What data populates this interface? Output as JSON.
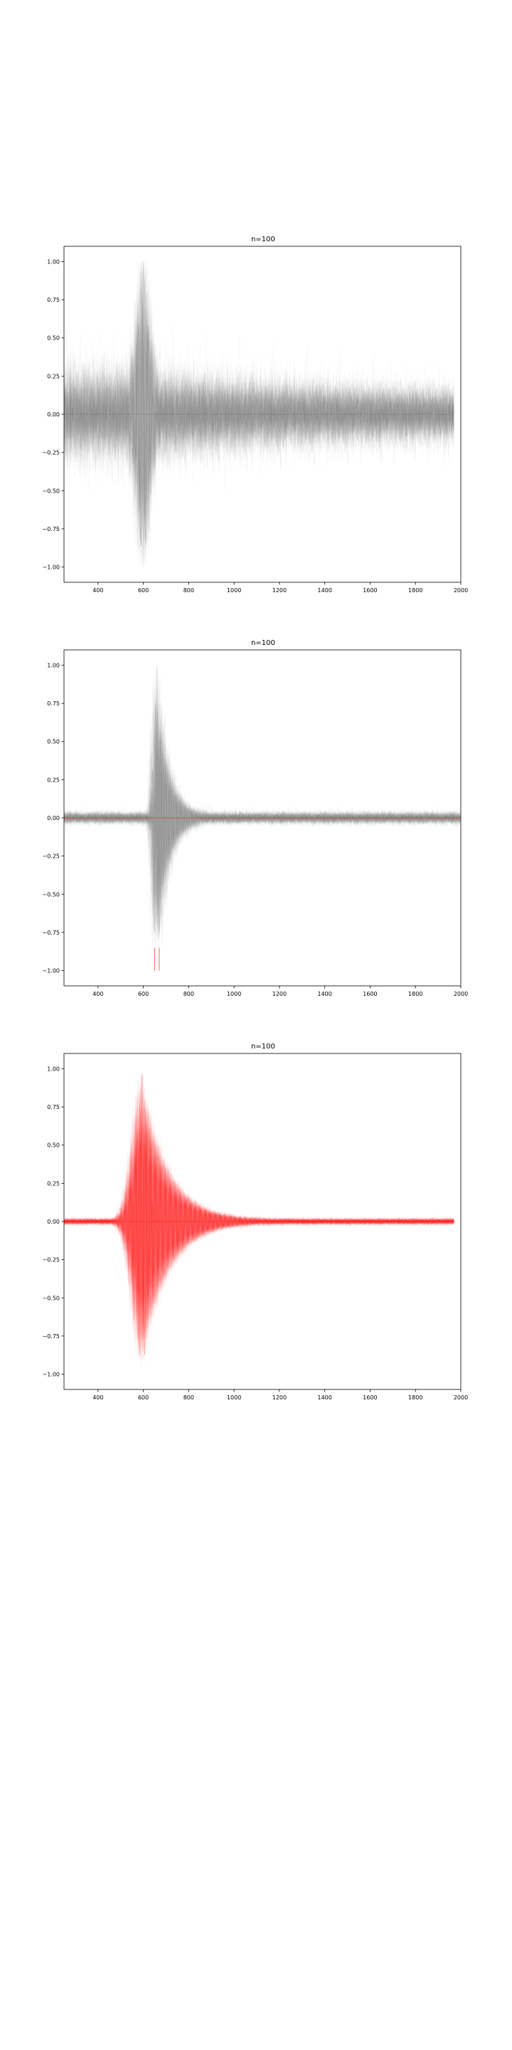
{
  "colors": {
    "gray": "#808080",
    "red": "#ff2a1a",
    "axes": "#000000",
    "background": "#ffffff"
  },
  "chart_data": [
    {
      "type": "line",
      "title": "n=100",
      "xlabel": "",
      "ylabel": "",
      "xlim": [
        250,
        2000
      ],
      "ylim": [
        -1.1,
        1.1
      ],
      "x_ticks": [
        400,
        600,
        800,
        1000,
        1200,
        1400,
        1600,
        1800,
        2000
      ],
      "x_tick_labels": [
        "400",
        "600",
        "800",
        "1000",
        "1200",
        "1400",
        "1600",
        "1800",
        "2000"
      ],
      "y_ticks": [
        1.0,
        0.75,
        0.5,
        0.25,
        0.0,
        -0.25,
        -0.5,
        -0.75,
        -1.0
      ],
      "y_tick_labels": [
        "1.00",
        "0.75",
        "0.50",
        "0.25",
        "0.00",
        "−0.25",
        "−0.50",
        "−0.75",
        "−1.00"
      ],
      "series": [
        {
          "name": "overlay of 100 normalized traces",
          "color": "gray",
          "x_range": [
            250,
            1970
          ],
          "peak_x": 600,
          "max": 1.0,
          "min": -1.0,
          "background_noise_amplitude": 0.3
        },
        {
          "name": "baseline",
          "color": "gray",
          "x": [
            250,
            1970
          ],
          "values": [
            0,
            0
          ]
        }
      ]
    },
    {
      "type": "line",
      "title": "n=100",
      "xlabel": "",
      "ylabel": "",
      "xlim": [
        250,
        2000
      ],
      "ylim": [
        -1.1,
        1.1
      ],
      "x_ticks": [
        400,
        600,
        800,
        1000,
        1200,
        1400,
        1600,
        1800,
        2000
      ],
      "x_tick_labels": [
        "400",
        "600",
        "800",
        "1000",
        "1200",
        "1400",
        "1600",
        "1800",
        "2000"
      ],
      "y_ticks": [
        1.0,
        0.75,
        0.5,
        0.25,
        0.0,
        -0.25,
        -0.5,
        -0.75,
        -1.0
      ],
      "y_tick_labels": [
        "1.00",
        "0.75",
        "0.50",
        "0.25",
        "0.00",
        "−0.25",
        "−0.50",
        "−0.75",
        "−1.00"
      ],
      "series": [
        {
          "name": "overlay of 100 normalized traces",
          "color": "gray",
          "x_range": [
            250,
            2000
          ],
          "peak_x": 660,
          "max": 1.0,
          "min": -1.0,
          "background_noise_amplitude": 0.02
        },
        {
          "name": "aligned trace minima",
          "color": "red",
          "x": [
            650,
            670
          ],
          "values": [
            -1.0,
            -1.0
          ]
        },
        {
          "name": "baseline",
          "color": "red",
          "x": [
            250,
            2000
          ],
          "values": [
            0,
            0
          ]
        }
      ]
    },
    {
      "type": "line",
      "title": "n=100",
      "xlabel": "",
      "ylabel": "",
      "xlim": [
        250,
        2000
      ],
      "ylim": [
        -1.1,
        1.1
      ],
      "x_ticks": [
        400,
        600,
        800,
        1000,
        1200,
        1400,
        1600,
        1800,
        2000
      ],
      "x_tick_labels": [
        "400",
        "600",
        "800",
        "1000",
        "1200",
        "1400",
        "1600",
        "1800",
        "2000"
      ],
      "y_ticks": [
        1.0,
        0.75,
        0.5,
        0.25,
        0.0,
        -0.25,
        -0.5,
        -0.75,
        -1.0
      ],
      "y_tick_labels": [
        "1.00",
        "0.75",
        "0.50",
        "0.25",
        "0.00",
        "−0.25",
        "−0.50",
        "−0.75",
        "−1.00"
      ],
      "series": [
        {
          "name": "overlay of 100 normalized traces",
          "color": "red",
          "x_range": [
            250,
            1970
          ],
          "peak_x": 595,
          "max": 1.0,
          "min": -1.0,
          "background_noise_amplitude": 0.01
        },
        {
          "name": "baseline",
          "color": "red",
          "x": [
            250,
            1970
          ],
          "values": [
            0,
            0
          ]
        }
      ]
    }
  ]
}
